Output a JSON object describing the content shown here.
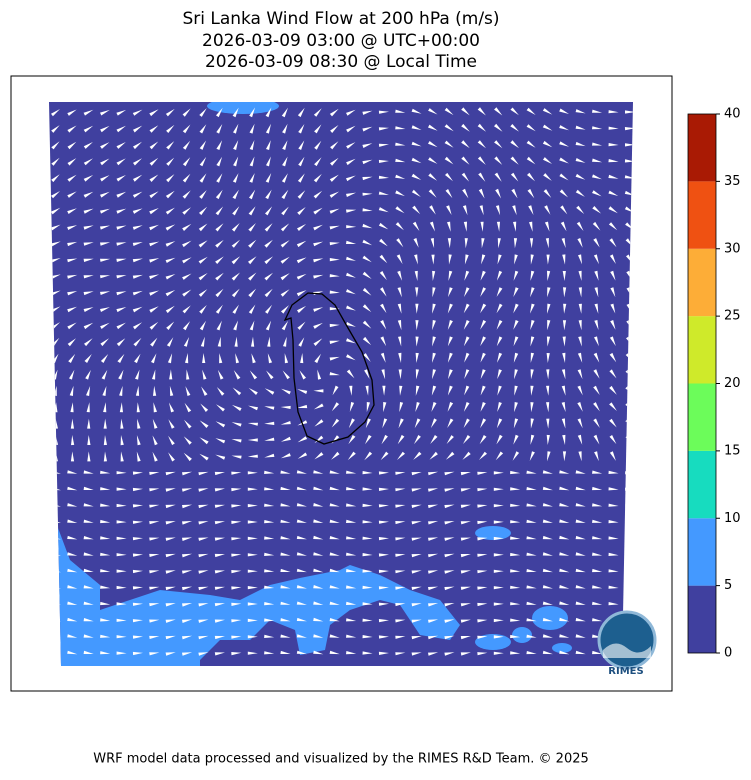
{
  "title": [
    "Sri Lanka Wind Flow at 200 hPa (m/s)",
    "2026-03-09 03:00 @ UTC+00:00",
    "2026-03-09 08:30 @ Local Time"
  ],
  "colorbar": {
    "ticks": [
      0,
      5,
      10,
      15,
      20,
      25,
      30,
      35,
      40
    ],
    "colors": [
      "#40409f",
      "#4499ff",
      "#17dcbf",
      "#6cfc5a",
      "#cfea2a",
      "#fdad37",
      "#ef5112",
      "#a91a04"
    ]
  },
  "logo": "RIMES",
  "footer": "WRF model data processed and visualized by the RIMES R&D Team. © 2025"
}
